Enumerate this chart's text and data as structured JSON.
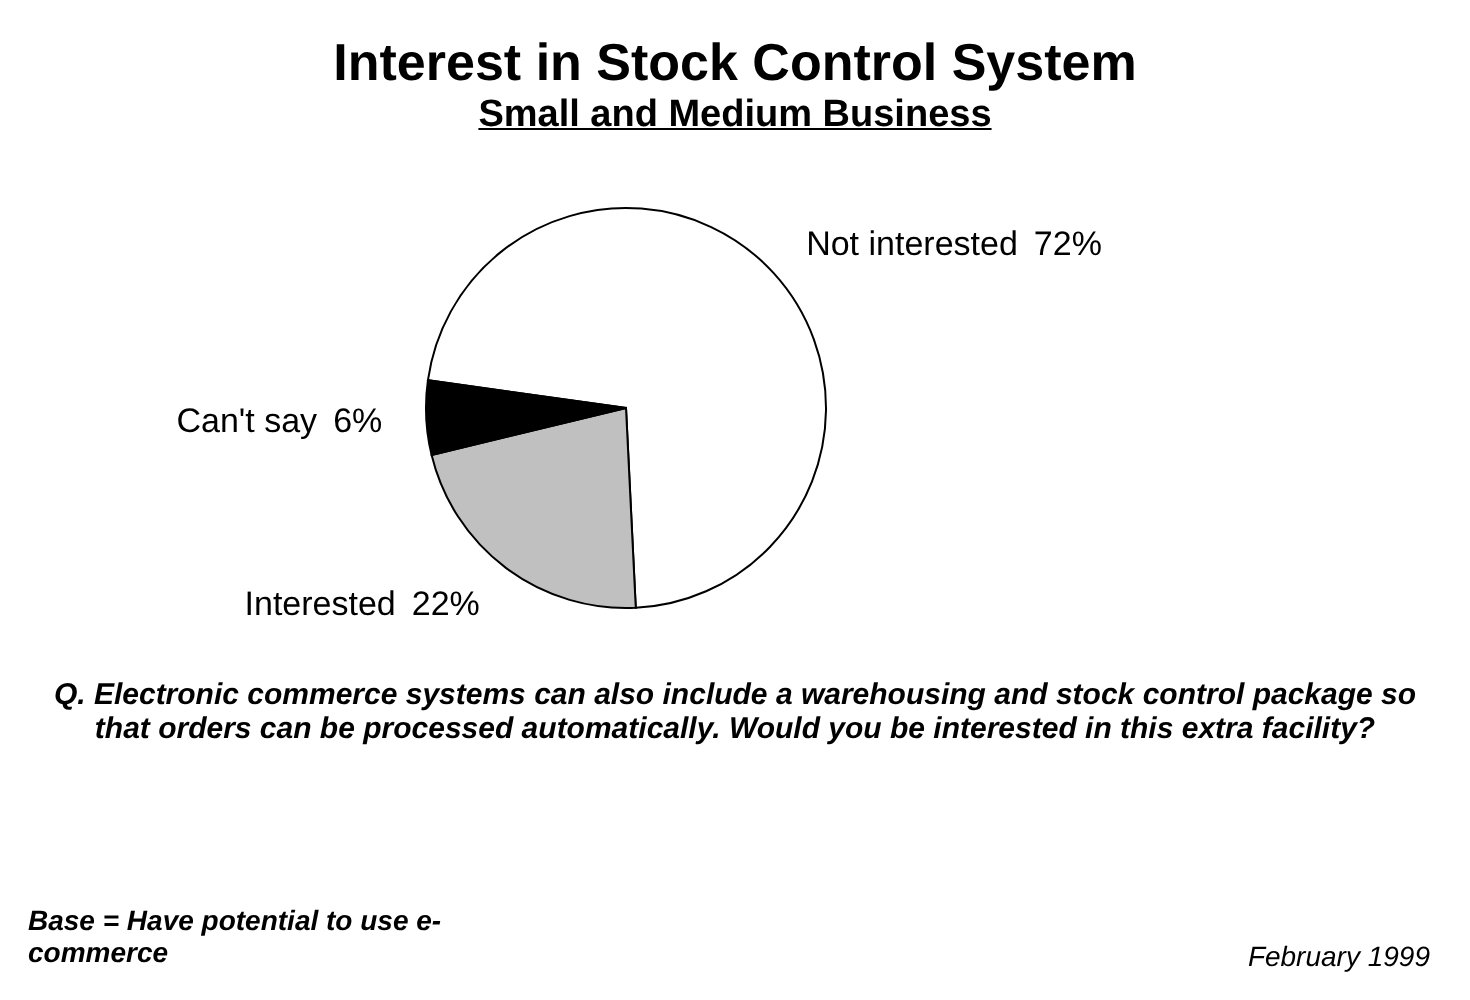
{
  "chart_data": {
    "type": "pie",
    "title": "Interest in Stock Control System",
    "subtitle": "Small and Medium Business",
    "categories": [
      "Not interested",
      "Interested",
      "Can't say"
    ],
    "values": [
      72,
      22,
      6
    ],
    "colors": [
      "#ffffff",
      "#c0c0c0",
      "#000000"
    ],
    "value_labels": [
      "72%",
      "22%",
      "6%"
    ],
    "annotations": [
      "Q. Electronic commerce systems can also include a warehousing and stock control package so that orders can be processed automatically. Would you be interested in this extra facility?",
      "Base = Have potential to use e-commerce",
      "February 1999"
    ]
  }
}
